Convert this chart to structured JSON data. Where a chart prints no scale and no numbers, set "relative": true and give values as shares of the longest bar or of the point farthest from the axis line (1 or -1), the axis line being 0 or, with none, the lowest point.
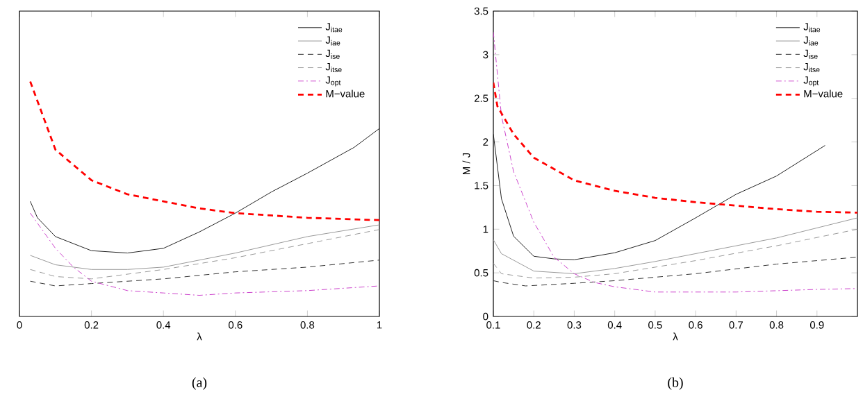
{
  "chart_data": [
    {
      "type": "line",
      "relative": true,
      "xlabel": "λ",
      "xlim": [
        0,
        1
      ],
      "xticks": [
        0,
        0.2,
        0.4,
        0.6,
        0.8,
        1
      ],
      "tick_labels": "x",
      "legend": "top right",
      "annotations": [
        "(a)"
      ],
      "series": [
        {
          "name": "J$_{itae}$",
          "color": "#222222",
          "line_style": "solid",
          "x": [
            0.03,
            0.05,
            0.1,
            0.2,
            0.3,
            0.4,
            0.5,
            0.6,
            0.7,
            0.8,
            0.93,
            1.0
          ],
          "values": [
            0.49,
            0.42,
            0.34,
            0.28,
            0.27,
            0.29,
            0.36,
            0.44,
            0.53,
            0.61,
            0.72,
            0.8
          ]
        },
        {
          "name": "J$_{iae}$",
          "color": "#999999",
          "line_style": "solid",
          "x": [
            0.03,
            0.1,
            0.2,
            0.3,
            0.4,
            0.6,
            0.8,
            1.0
          ],
          "values": [
            0.26,
            0.22,
            0.2,
            0.2,
            0.21,
            0.27,
            0.34,
            0.39
          ]
        },
        {
          "name": "J$_{ise}$",
          "color": "#333333",
          "line_style": "dashed",
          "x": [
            0.03,
            0.1,
            0.2,
            0.4,
            0.6,
            0.8,
            1.0
          ],
          "values": [
            0.15,
            0.13,
            0.14,
            0.16,
            0.19,
            0.21,
            0.24
          ]
        },
        {
          "name": "J$_{itse}$",
          "color": "#999999",
          "line_style": "dashed",
          "x": [
            0.03,
            0.1,
            0.2,
            0.4,
            0.6,
            0.8,
            1.0
          ],
          "values": [
            0.2,
            0.17,
            0.16,
            0.2,
            0.25,
            0.31,
            0.37
          ]
        },
        {
          "name": "J$_{opt}$",
          "color": "#cc44cc",
          "line_style": "dashdot",
          "x": [
            0.03,
            0.1,
            0.15,
            0.2,
            0.3,
            0.4,
            0.5,
            0.6,
            0.8,
            1.0
          ],
          "values": [
            0.44,
            0.29,
            0.21,
            0.15,
            0.11,
            0.1,
            0.09,
            0.1,
            0.11,
            0.13
          ]
        },
        {
          "name": "M−value",
          "color": "#ff0000",
          "line_style": "dashed",
          "x": [
            0.03,
            0.1,
            0.2,
            0.3,
            0.4,
            0.5,
            0.6,
            0.7,
            0.8,
            1.0
          ],
          "values": [
            1.0,
            0.71,
            0.58,
            0.52,
            0.49,
            0.46,
            0.44,
            0.43,
            0.42,
            0.41
          ]
        }
      ]
    },
    {
      "type": "line",
      "xlabel": "λ",
      "ylabel": "M / J",
      "xlim": [
        0.1,
        1.0
      ],
      "ylim": [
        0,
        3.5
      ],
      "xticks": [
        0.1,
        0.2,
        0.3,
        0.4,
        0.5,
        0.6,
        0.7,
        0.8,
        0.9
      ],
      "yticks": [
        0,
        0.5,
        1,
        1.5,
        2,
        2.5,
        3,
        3.5
      ],
      "legend": "top right",
      "annotations": [
        "(b)"
      ],
      "series": [
        {
          "name": "J$_{itae}$",
          "color": "#222222",
          "line_style": "solid",
          "x": [
            0.1,
            0.12,
            0.15,
            0.2,
            0.25,
            0.3,
            0.4,
            0.5,
            0.6,
            0.7,
            0.8,
            0.92
          ],
          "values": [
            2.09,
            1.35,
            0.92,
            0.69,
            0.66,
            0.65,
            0.73,
            0.87,
            1.13,
            1.4,
            1.61,
            1.96
          ]
        },
        {
          "name": "J$_{iae}$",
          "color": "#999999",
          "line_style": "solid",
          "x": [
            0.1,
            0.12,
            0.2,
            0.3,
            0.4,
            0.5,
            0.6,
            0.8,
            1.0
          ],
          "values": [
            0.88,
            0.72,
            0.52,
            0.49,
            0.55,
            0.63,
            0.72,
            0.9,
            1.13
          ]
        },
        {
          "name": "J$_{ise}$",
          "color": "#333333",
          "line_style": "dashed",
          "x": [
            0.1,
            0.12,
            0.18,
            0.3,
            0.4,
            0.6,
            0.8,
            1.0
          ],
          "values": [
            0.41,
            0.39,
            0.35,
            0.38,
            0.41,
            0.49,
            0.6,
            0.68
          ]
        },
        {
          "name": "J$_{itse}$",
          "color": "#999999",
          "line_style": "dashed",
          "x": [
            0.1,
            0.12,
            0.2,
            0.3,
            0.4,
            0.6,
            0.8,
            1.0
          ],
          "values": [
            0.61,
            0.49,
            0.44,
            0.45,
            0.49,
            0.64,
            0.81,
            1.0
          ]
        },
        {
          "name": "J$_{opt}$",
          "color": "#cc44cc",
          "line_style": "dashdot",
          "x": [
            0.1,
            0.12,
            0.15,
            0.2,
            0.25,
            0.3,
            0.35,
            0.4,
            0.5,
            0.7,
            0.9,
            1.0
          ],
          "values": [
            3.26,
            2.3,
            1.66,
            1.08,
            0.68,
            0.49,
            0.39,
            0.34,
            0.28,
            0.28,
            0.31,
            0.32
          ]
        },
        {
          "name": "M−value",
          "color": "#ff0000",
          "line_style": "dashed",
          "x": [
            0.1,
            0.11,
            0.15,
            0.2,
            0.3,
            0.4,
            0.5,
            0.6,
            0.7,
            0.8,
            0.9,
            1.0
          ],
          "values": [
            2.68,
            2.41,
            2.09,
            1.82,
            1.56,
            1.44,
            1.36,
            1.31,
            1.27,
            1.23,
            1.2,
            1.19
          ]
        }
      ]
    }
  ]
}
